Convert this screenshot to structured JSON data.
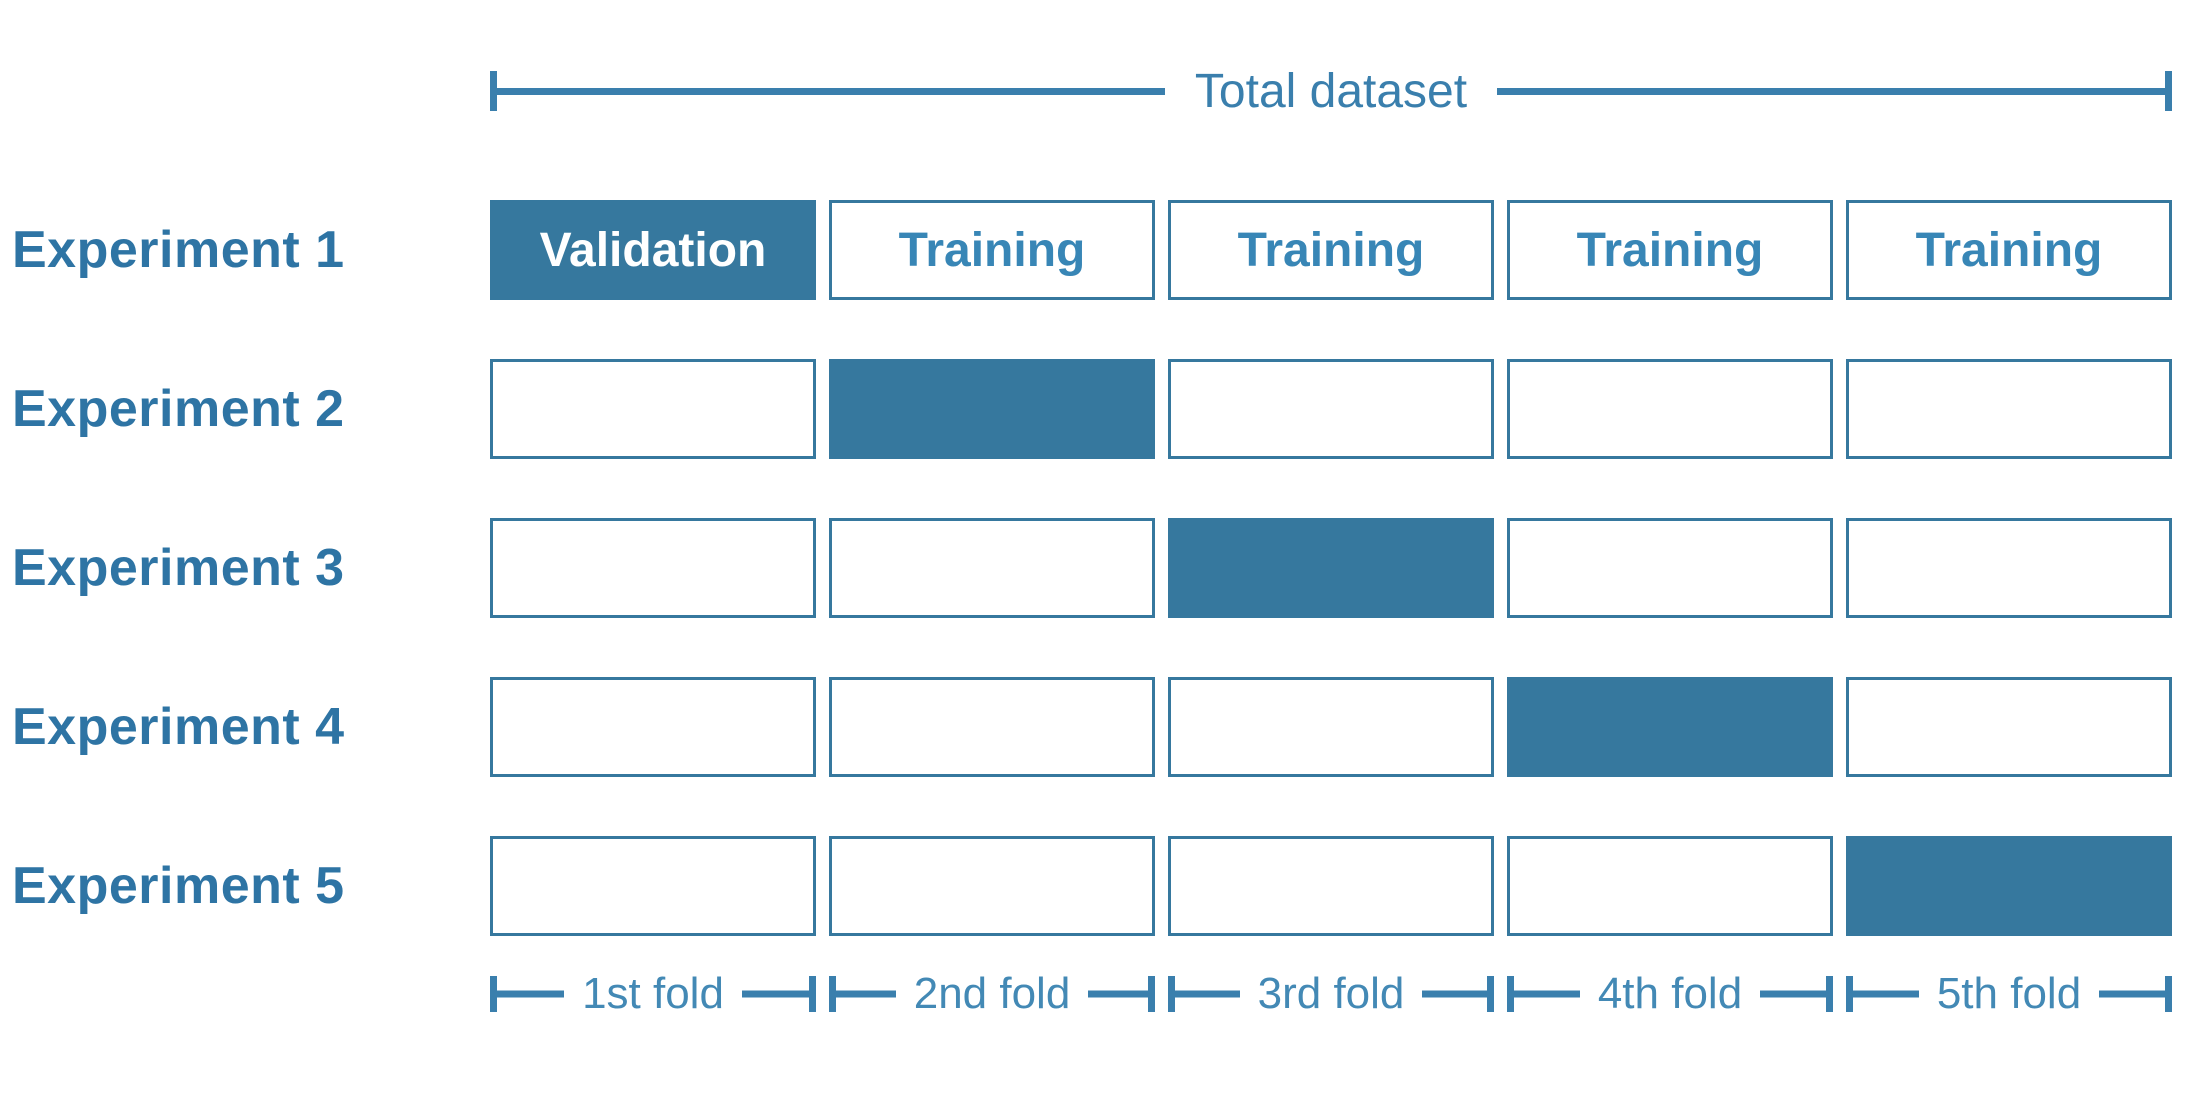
{
  "header": {
    "total_label": "Total dataset"
  },
  "experiments": [
    {
      "label": "Experiment 1",
      "validation_fold": 1,
      "cells": [
        "Validation",
        "Training",
        "Training",
        "Training",
        "Training"
      ]
    },
    {
      "label": "Experiment 2",
      "validation_fold": 2,
      "cells": [
        "",
        "",
        "",
        "",
        ""
      ]
    },
    {
      "label": "Experiment 3",
      "validation_fold": 3,
      "cells": [
        "",
        "",
        "",
        "",
        ""
      ]
    },
    {
      "label": "Experiment 4",
      "validation_fold": 4,
      "cells": [
        "",
        "",
        "",
        "",
        ""
      ]
    },
    {
      "label": "Experiment 5",
      "validation_fold": 5,
      "cells": [
        "",
        "",
        "",
        "",
        ""
      ]
    }
  ],
  "folds": [
    "1st fold",
    "2nd fold",
    "3rd fold",
    "4th fold",
    "5th fold"
  ],
  "colors": {
    "fill": "#36789e",
    "border": "#36789e",
    "experiment_label": "#2e74a4",
    "box_text": "#3886b6",
    "bracket": "#3a7fad",
    "fold_text": "#4389b5"
  }
}
